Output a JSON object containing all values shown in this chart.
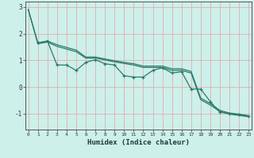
{
  "xlabel": "Humidex (Indice chaleur)",
  "background_color": "#cdf0ea",
  "grid_color": "#e8a0a0",
  "line_color": "#2a7a6a",
  "xlim": [
    -0.3,
    23.3
  ],
  "ylim": [
    -1.6,
    3.2
  ],
  "yticks": [
    -1,
    0,
    1,
    2,
    3
  ],
  "xticks": [
    0,
    1,
    2,
    3,
    4,
    5,
    6,
    7,
    8,
    9,
    10,
    11,
    12,
    13,
    14,
    15,
    16,
    17,
    18,
    19,
    20,
    21,
    22,
    23
  ],
  "line1_x": [
    0,
    1,
    2,
    3,
    4,
    5,
    6,
    7,
    8,
    9,
    10,
    11,
    12,
    13,
    14,
    15,
    16,
    17,
    18,
    19,
    20,
    21,
    22,
    23
  ],
  "line1_y": [
    2.9,
    1.65,
    1.72,
    1.58,
    1.48,
    1.38,
    1.12,
    1.12,
    1.05,
    0.98,
    0.92,
    0.87,
    0.78,
    0.78,
    0.78,
    0.68,
    0.68,
    0.58,
    -0.42,
    -0.62,
    -0.88,
    -0.98,
    -1.02,
    -1.08
  ],
  "line2_x": [
    0,
    1,
    2,
    3,
    4,
    5,
    6,
    7,
    8,
    9,
    10,
    11,
    12,
    13,
    14,
    15,
    16,
    17,
    18,
    19,
    20,
    21,
    22,
    23
  ],
  "line2_y": [
    2.9,
    1.62,
    1.68,
    1.52,
    1.42,
    1.32,
    1.08,
    1.08,
    1.01,
    0.94,
    0.88,
    0.82,
    0.73,
    0.73,
    0.73,
    0.62,
    0.62,
    0.52,
    -0.48,
    -0.68,
    -0.92,
    -1.02,
    -1.07,
    -1.12
  ],
  "line3_x": [
    1,
    2,
    3,
    4,
    5,
    6,
    7,
    8,
    9,
    10,
    11,
    12,
    13,
    14,
    15,
    16,
    17,
    18,
    19,
    20,
    21,
    22,
    23
  ],
  "line3_y": [
    1.65,
    1.72,
    0.82,
    0.82,
    0.62,
    0.92,
    1.02,
    0.87,
    0.82,
    0.42,
    0.37,
    0.37,
    0.62,
    0.72,
    0.52,
    0.57,
    -0.08,
    -0.08,
    -0.55,
    -0.95,
    -1.0,
    -1.05,
    -1.1
  ]
}
